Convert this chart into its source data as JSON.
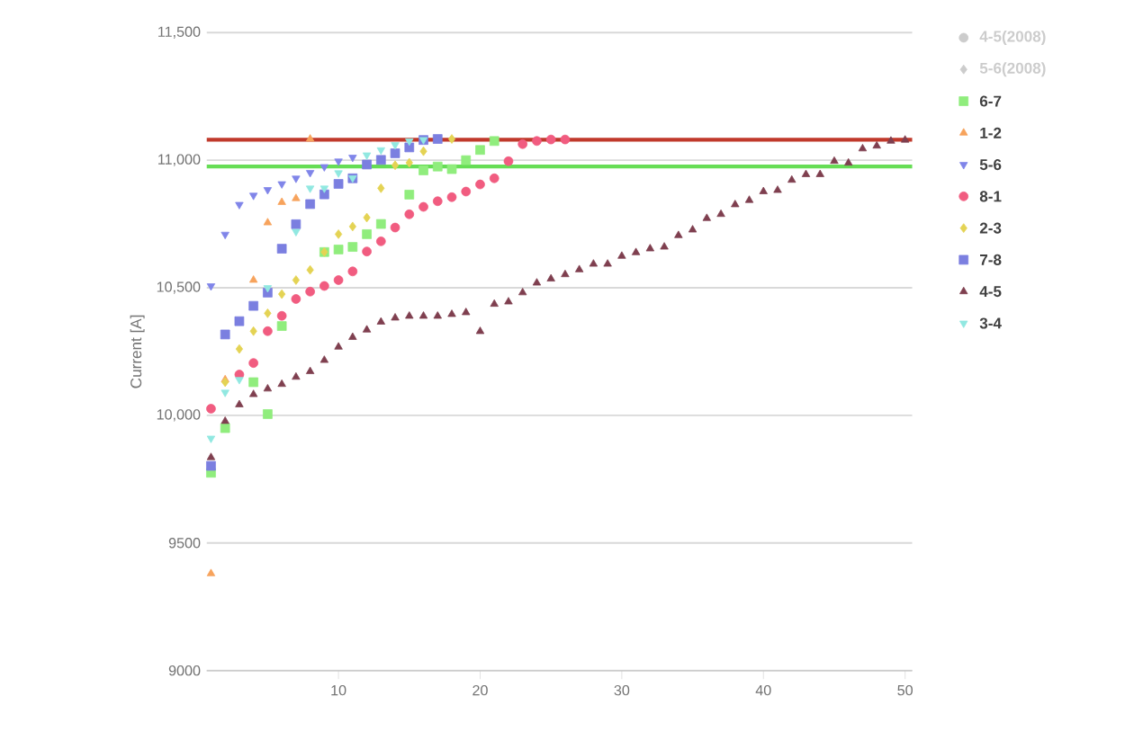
{
  "chart_data": {
    "type": "scatter",
    "ylabel": "Current [A]",
    "xlim": [
      0.7,
      50.5
    ],
    "xticks": [
      10,
      20,
      30,
      40,
      50
    ],
    "ylim": [
      9000,
      11500
    ],
    "yticks": [
      9000,
      9500,
      {
        "value": 10000,
        "label": "10,000"
      },
      {
        "value": 10500,
        "label": "10,500"
      },
      {
        "value": 11000,
        "label": "11,000"
      },
      {
        "value": 11500,
        "label": "11,500"
      }
    ],
    "grid": "y",
    "legend": "right",
    "ref_lines": [
      {
        "axis": "y",
        "value": 11080,
        "color": "#c0392b"
      },
      {
        "axis": "y",
        "value": 10975,
        "color": "#66dd55"
      }
    ],
    "series": [
      {
        "name": "4-5(2008)",
        "color": "#cccccc",
        "marker": "circle"
      },
      {
        "name": "5-6(2008)",
        "color": "#cccccc",
        "marker": "diamond"
      },
      {
        "name": "6-7",
        "color": "#90ed7d",
        "marker": "square",
        "x": [
          1,
          2,
          4,
          5,
          6,
          9,
          10,
          11,
          12,
          13,
          15,
          16,
          17,
          18,
          19,
          20,
          21
        ],
        "values": [
          9775,
          9950,
          10130,
          10005,
          10350,
          10640,
          10650,
          10660,
          10710,
          10750,
          10865,
          10960,
          10975,
          10965,
          11000,
          11040,
          11075
        ]
      },
      {
        "name": "1-2",
        "color": "#f7a35c",
        "marker": "triangle",
        "x": [
          1,
          2,
          4,
          5,
          6,
          7,
          8
        ],
        "values": [
          9380,
          10140,
          10530,
          10755,
          10835,
          10850,
          11083
        ]
      },
      {
        "name": "5-6",
        "color": "#8085e9",
        "marker": "triangle-down",
        "x": [
          1,
          2,
          3,
          4,
          5,
          6,
          7,
          8,
          9,
          10,
          11
        ],
        "values": [
          10507,
          10709,
          10826,
          10862,
          10884,
          10907,
          10929,
          10951,
          10974,
          10996,
          11011
        ]
      },
      {
        "name": "8-1",
        "color": "#f15c80",
        "marker": "circle",
        "x": [
          1,
          3,
          4,
          5,
          6,
          7,
          8,
          9,
          10,
          11,
          12,
          13,
          14,
          15,
          16,
          17,
          18,
          19,
          20,
          21,
          22,
          23,
          24,
          25,
          26
        ],
        "values": [
          10026,
          10160,
          10205,
          10330,
          10390,
          10456,
          10485,
          10507,
          10530,
          10564,
          10642,
          10682,
          10736,
          10788,
          10817,
          10839,
          10855,
          10877,
          10905,
          10929,
          10996,
          11063,
          11075,
          11081,
          11081
        ]
      },
      {
        "name": "2-3",
        "color": "#e4d354",
        "marker": "diamond",
        "x": [
          2,
          3,
          4,
          5,
          6,
          7,
          8,
          9,
          10,
          11,
          12,
          13,
          14,
          15,
          16,
          18
        ],
        "values": [
          10130,
          10260,
          10330,
          10400,
          10475,
          10530,
          10570,
          10640,
          10710,
          10740,
          10775,
          10890,
          10980,
          10990,
          11035,
          11083
        ]
      },
      {
        "name": "7-8",
        "color": "#7b7fe0",
        "marker": "square",
        "x": [
          1,
          2,
          3,
          4,
          5,
          6,
          7,
          8,
          9,
          10,
          11,
          12,
          13,
          14,
          15,
          16,
          17
        ],
        "values": [
          9802,
          10317,
          10369,
          10429,
          10481,
          10653,
          10749,
          10828,
          10866,
          10907,
          10929,
          10983,
          11001,
          11027,
          11050,
          11079,
          11083
        ]
      },
      {
        "name": "4-5",
        "color": "#7f3f4f",
        "marker": "triangle",
        "x": [
          1,
          2,
          3,
          4,
          5,
          6,
          7,
          8,
          9,
          10,
          11,
          12,
          13,
          14,
          15,
          16,
          17,
          18,
          19,
          20,
          21,
          22,
          23,
          24,
          25,
          26,
          27,
          28,
          29,
          30,
          31,
          32,
          33,
          34,
          35,
          36,
          37,
          38,
          39,
          40,
          41,
          42,
          43,
          44,
          45,
          46,
          47,
          48,
          49,
          50
        ],
        "values": [
          9835,
          9977,
          10042,
          10082,
          10104,
          10122,
          10150,
          10172,
          10216,
          10268,
          10306,
          10335,
          10366,
          10382,
          10389,
          10389,
          10389,
          10396,
          10403,
          10329,
          10436,
          10445,
          10481,
          10519,
          10535,
          10552,
          10571,
          10593,
          10593,
          10624,
          10638,
          10653,
          10660,
          10705,
          10727,
          10772,
          10788,
          10826,
          10843,
          10877,
          10882,
          10922,
          10944,
          10944,
          10996,
          10989,
          11045,
          11056,
          11075,
          11079
        ]
      },
      {
        "name": "3-4",
        "color": "#91e8e1",
        "marker": "triangle-down",
        "x": [
          1,
          2,
          3,
          5,
          7,
          8,
          9,
          10,
          11,
          12,
          13,
          14,
          15,
          16
        ],
        "values": [
          9910,
          10090,
          10140,
          10500,
          10720,
          10890,
          10890,
          10950,
          10930,
          11020,
          11040,
          11060,
          11075,
          11080
        ]
      }
    ]
  }
}
